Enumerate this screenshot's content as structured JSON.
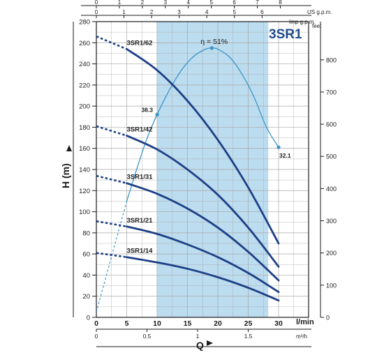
{
  "chart_data": {
    "type": "line",
    "title": "3SR1",
    "ylabel": "H (m)",
    "ylabel_right": "feet",
    "xlabel": "Q",
    "ylim": [
      0,
      280
    ],
    "xlim": [
      0,
      35
    ],
    "x_unit_main": "l/min",
    "x_unit_bottom": "m³/h",
    "x_unit_top1": "US g.p.m.",
    "x_unit_top2": "Imp g.p.m.",
    "grid": true,
    "y_ticks": [
      "0",
      "20",
      "40",
      "60",
      "80",
      "100",
      "120",
      "140",
      "160",
      "180",
      "200",
      "220",
      "240",
      "260",
      "280"
    ],
    "x_ticks_main": [
      "0",
      "5",
      "10",
      "15",
      "20",
      "25",
      "30"
    ],
    "x_ticks_bottom": [
      "0",
      "0.5",
      "1",
      "1.5"
    ],
    "x_ticks_top_us": [
      "0",
      "1",
      "2",
      "3",
      "4",
      "5",
      "6",
      "7",
      "8"
    ],
    "x_ticks_top_imp": [
      "0",
      "1",
      "2",
      "3",
      "4",
      "5",
      "6"
    ],
    "y_ticks_right_feet": [
      "0",
      "100",
      "200",
      "300",
      "400",
      "500",
      "600",
      "700",
      "800"
    ],
    "operating_range": {
      "x_start": 10,
      "x_end": 28.3
    },
    "series": [
      {
        "name": "3SR1/62",
        "dashed": {
          "x": [
            0,
            5
          ],
          "y": [
            266,
            254
          ]
        },
        "x": [
          5,
          10,
          15,
          20,
          25,
          30
        ],
        "y": [
          254,
          234,
          205,
          168,
          123,
          70
        ]
      },
      {
        "name": "3SR1/42",
        "dashed": {
          "x": [
            0,
            5
          ],
          "y": [
            181,
            172
          ]
        },
        "x": [
          5,
          10,
          15,
          20,
          25,
          30
        ],
        "y": [
          172,
          159,
          140,
          116,
          85,
          48
        ]
      },
      {
        "name": "3SR1/31",
        "dashed": {
          "x": [
            0,
            5
          ],
          "y": [
            134,
            127
          ]
        },
        "x": [
          5,
          10,
          15,
          20,
          25,
          30
        ],
        "y": [
          127,
          117,
          103,
          85,
          62,
          35
        ]
      },
      {
        "name": "3SR1/21",
        "dashed": {
          "x": [
            0,
            5
          ],
          "y": [
            91,
            86
          ]
        },
        "x": [
          5,
          10,
          15,
          20,
          25,
          30
        ],
        "y": [
          86,
          79,
          69,
          57,
          42,
          24
        ]
      },
      {
        "name": "3SR1/14",
        "dashed": {
          "x": [
            0,
            5
          ],
          "y": [
            61,
            57
          ]
        },
        "x": [
          5,
          10,
          15,
          20,
          25,
          30
        ],
        "y": [
          57,
          52,
          46,
          38,
          28,
          16
        ]
      }
    ],
    "efficiency": {
      "peak_label": "η = 51%",
      "label_start": "38.3",
      "label_end": "32.1",
      "dashed": {
        "x": [
          0,
          5
        ],
        "y": [
          5,
          110
        ]
      },
      "x": [
        5,
        8,
        10,
        12,
        14,
        16,
        18,
        19,
        20,
        22,
        24,
        26,
        28,
        30
      ],
      "y": [
        110,
        164,
        192,
        215,
        234,
        247,
        254,
        255,
        254,
        246,
        230,
        208,
        180,
        161
      ],
      "points": [
        {
          "x": 10,
          "y": 192
        },
        {
          "x": 19,
          "y": 255
        },
        {
          "x": 30,
          "y": 161
        }
      ]
    }
  }
}
